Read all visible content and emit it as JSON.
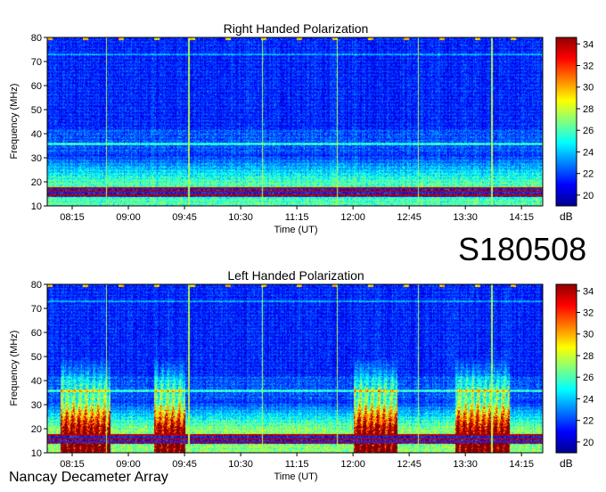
{
  "event_id": "S180508",
  "instrument": "Nancay Decameter Array",
  "colors": {
    "low": "#00008f",
    "high": "#8f0000"
  },
  "chart_data": [
    {
      "type": "heatmap",
      "title": "Right Handed Polarization",
      "xlabel": "Time (UT)",
      "ylabel": "Frequency (MHz)",
      "xticks": [
        "08:15",
        "09:00",
        "09:45",
        "10:30",
        "11:15",
        "12:00",
        "12:45",
        "13:30",
        "14:15"
      ],
      "yticks": [
        "10",
        "20",
        "30",
        "40",
        "50",
        "60",
        "70",
        "80"
      ],
      "ylim": [
        10,
        80
      ],
      "colorbar": {
        "label": "dB",
        "ticks": [
          "20",
          "22",
          "24",
          "26",
          "28",
          "30",
          "32",
          "34"
        ],
        "range": [
          19,
          34.6
        ],
        "colormap": "jet"
      },
      "structure": {
        "background_db": 21.5,
        "low_freq_band_db": 26,
        "interference_band_mhz": [
          14,
          18
        ],
        "burst_intervals": [],
        "vertical_lines_times": [
          "08:42",
          "09:48",
          "10:47",
          "11:47",
          "12:52",
          "13:51"
        ]
      }
    },
    {
      "type": "heatmap",
      "title": "Left Handed Polarization",
      "xlabel": "Time (UT)",
      "ylabel": "Frequency (MHz)",
      "xticks": [
        "08:15",
        "09:00",
        "09:45",
        "10:30",
        "11:15",
        "12:00",
        "12:45",
        "13:30",
        "14:15"
      ],
      "yticks": [
        "10",
        "20",
        "30",
        "40",
        "50",
        "60",
        "70",
        "80"
      ],
      "ylim": [
        10,
        80
      ],
      "colorbar": {
        "label": "dB",
        "ticks": [
          "20",
          "22",
          "24",
          "26",
          "28",
          "30",
          "32",
          "34"
        ],
        "range": [
          19,
          34.6
        ],
        "colormap": "jet"
      },
      "structure": {
        "background_db": 21.5,
        "low_freq_band_db": 27,
        "interference_band_mhz": [
          14,
          18
        ],
        "burst_intervals": [
          [
            "08:05",
            "08:45"
          ],
          [
            "09:20",
            "09:45"
          ],
          [
            "12:00",
            "12:35"
          ],
          [
            "13:22",
            "14:05"
          ]
        ],
        "vertical_lines_times": [
          "08:42",
          "09:48",
          "10:47",
          "11:47",
          "12:52",
          "13:51"
        ]
      }
    }
  ]
}
